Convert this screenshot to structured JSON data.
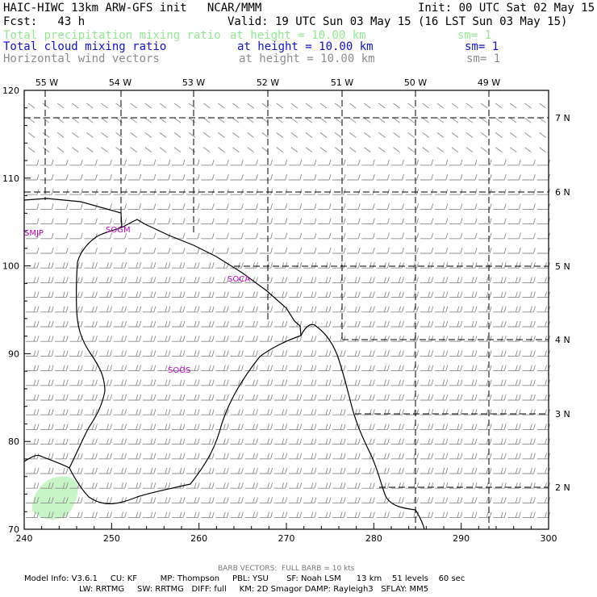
{
  "header": {
    "left_line1": "HAIC-HIWC 13km ARW-GFS init   NCAR/MMM",
    "right_line1": "Init: 00 UTC Sat 02 May 15",
    "left_line2": "Fcst:   43 h",
    "right_line2": "Valid: 19 UTC Sun 03 May 15 (16 LST Sun 03 May 15)",
    "fields": [
      {
        "name": "Total precipitation mixing ratio",
        "height": "at height = 10.00 km",
        "sm": "sm= 1",
        "color": "#90e890"
      },
      {
        "name": "Total cloud mixing ratio",
        "height": "at height = 10.00 km",
        "sm": "sm= 1",
        "color": "#1010d0"
      },
      {
        "name": "Horizontal wind vectors",
        "height": "at height = 10.00 km",
        "sm": "sm= 1",
        "color": "#8c8c8c"
      }
    ]
  },
  "map": {
    "top_lon_labels": [
      "55 W",
      "54 W",
      "53 W",
      "52 W",
      "51 W",
      "50 W",
      "49 W"
    ],
    "right_lat_labels": [
      "7 N",
      "6 N",
      "5 N",
      "4 N",
      "3 N",
      "2 N"
    ],
    "x_ticks": [
      "240",
      "250",
      "260",
      "270",
      "280",
      "290",
      "300"
    ],
    "y_ticks": [
      "70",
      "80",
      "90",
      "100",
      "110",
      "120"
    ],
    "x_range": [
      240,
      300
    ],
    "y_range": [
      70,
      120
    ],
    "stations": [
      "SMJP",
      "SOGM",
      "SOCA",
      "SOOS"
    ],
    "barb_color": "#8c8c8c",
    "precip_color": "#c8f5c8"
  },
  "footer": {
    "barb_note": "BARB VECTORS:  FULL BARB = 10 kts",
    "model_line1": "Model Info: V3.6.1     CU: KF         MP: Thompson     PBL: YSU       SF: Noah LSM      13 km    51 levels    60 sec",
    "model_line2": "LW: RRTMG     SW: RRTMG   DIFF: full     KM: 2D Smagor DAMP: Rayleigh3   SFLAY: MM5"
  }
}
